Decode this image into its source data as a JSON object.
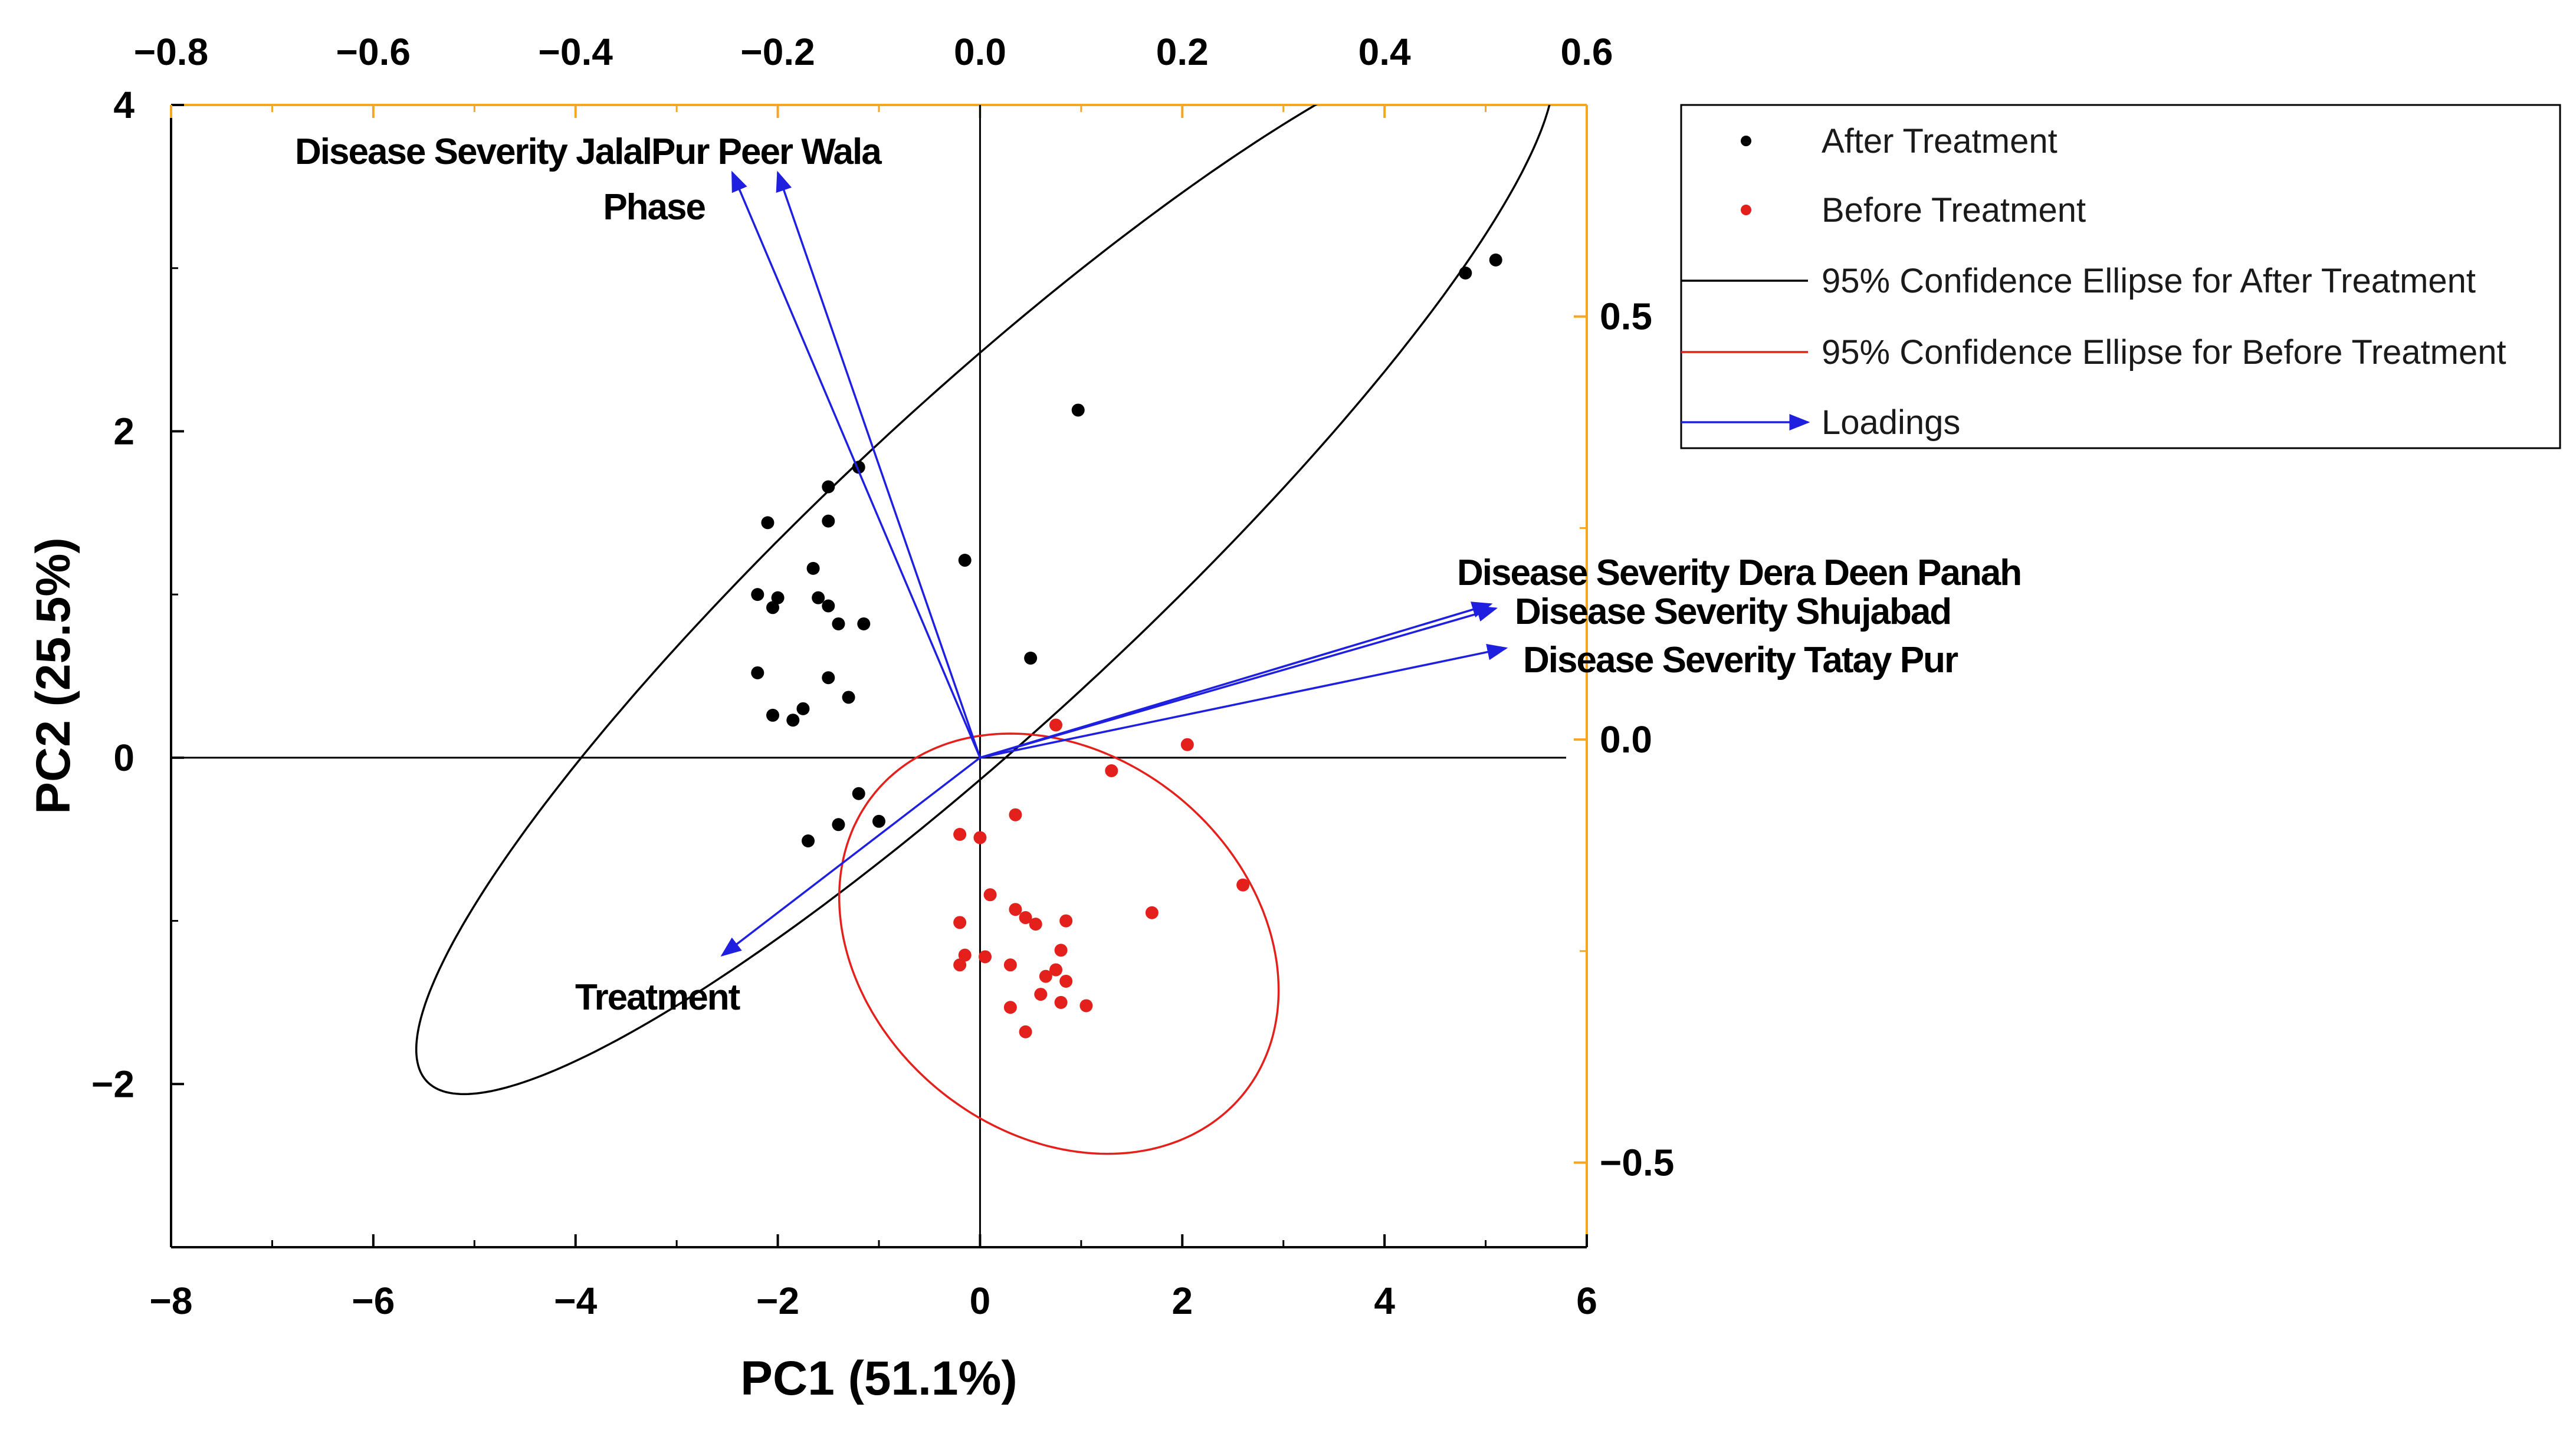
{
  "chart_data": {
    "type": "scatter",
    "subtype": "pca-biplot",
    "xlabel": "PC1 (51.1%)",
    "ylabel": "PC2 (25.5%)",
    "xlim": [
      -8,
      6
    ],
    "ylim": [
      -3,
      4
    ],
    "x_ticks": [
      "−8",
      "−6",
      "−4",
      "−2",
      "0",
      "2",
      "4",
      "6"
    ],
    "x_tick_values": [
      -8,
      -6,
      -4,
      -2,
      0,
      2,
      4,
      6
    ],
    "y_ticks": [
      "−2",
      "0",
      "2",
      "4"
    ],
    "y_tick_values": [
      -2,
      0,
      2,
      4
    ],
    "top_axis": {
      "lim": [
        -0.8,
        0.6
      ],
      "ticks": [
        "−0.8",
        "−0.6",
        "−0.4",
        "−0.2",
        "0.0",
        "0.2",
        "0.4",
        "0.6"
      ],
      "tick_values": [
        -0.8,
        -0.6,
        -0.4,
        -0.2,
        0.0,
        0.2,
        0.4,
        0.6
      ]
    },
    "right_axis": {
      "lim": [
        -0.6,
        0.75
      ],
      "ticks": [
        "0.5",
        "0.0",
        "−0.5"
      ],
      "tick_values": [
        0.5,
        0.0,
        -0.5
      ],
      "color": "#f5a623"
    },
    "series": [
      {
        "name": "After Treatment",
        "color": "#000000",
        "points": [
          [
            4.8,
            2.97
          ],
          [
            5.1,
            3.05
          ],
          [
            0.97,
            2.13
          ],
          [
            -1.2,
            1.78
          ],
          [
            -1.5,
            1.66
          ],
          [
            -2.1,
            1.44
          ],
          [
            -1.5,
            1.45
          ],
          [
            -1.65,
            1.16
          ],
          [
            -0.15,
            1.21
          ],
          [
            -2.2,
            1.0
          ],
          [
            -2.0,
            0.98
          ],
          [
            -2.05,
            0.92
          ],
          [
            -1.6,
            0.98
          ],
          [
            -1.5,
            0.93
          ],
          [
            -1.4,
            0.82
          ],
          [
            -1.15,
            0.82
          ],
          [
            0.5,
            0.61
          ],
          [
            -2.2,
            0.52
          ],
          [
            -1.5,
            0.49
          ],
          [
            -1.3,
            0.37
          ],
          [
            -1.75,
            0.3
          ],
          [
            -2.05,
            0.26
          ],
          [
            -1.85,
            0.23
          ],
          [
            -1.2,
            -0.22
          ],
          [
            -1.4,
            -0.41
          ],
          [
            -1.0,
            -0.39
          ],
          [
            -1.7,
            -0.51
          ]
        ]
      },
      {
        "name": "Before Treatment",
        "color": "#e3201b",
        "points": [
          [
            0.75,
            0.2
          ],
          [
            1.3,
            -0.08
          ],
          [
            2.05,
            0.08
          ],
          [
            -0.2,
            -0.47
          ],
          [
            0.35,
            -0.35
          ],
          [
            0.0,
            -0.49
          ],
          [
            2.6,
            -0.78
          ],
          [
            0.1,
            -0.84
          ],
          [
            0.35,
            -0.93
          ],
          [
            0.45,
            -0.98
          ],
          [
            0.55,
            -1.02
          ],
          [
            0.85,
            -1.0
          ],
          [
            1.7,
            -0.95
          ],
          [
            -0.2,
            -1.01
          ],
          [
            0.8,
            -1.18
          ],
          [
            -0.15,
            -1.21
          ],
          [
            0.05,
            -1.22
          ],
          [
            0.3,
            -1.27
          ],
          [
            0.75,
            -1.3
          ],
          [
            0.65,
            -1.34
          ],
          [
            0.85,
            -1.37
          ],
          [
            -0.2,
            -1.27
          ],
          [
            0.6,
            -1.45
          ],
          [
            0.8,
            -1.5
          ],
          [
            1.05,
            -1.52
          ],
          [
            0.3,
            -1.53
          ],
          [
            0.45,
            -1.68
          ]
        ]
      }
    ],
    "ellipses": [
      {
        "name": "95% Confidence Ellipse for After Treatment",
        "color": "#000000",
        "center": [
          0.05,
          1.2
        ],
        "semi_axes": [
          6.4,
          1.15
        ],
        "angle_deg": 29
      },
      {
        "name": "95% Confidence Ellipse for Before Treatment",
        "color": "#e3201b",
        "center": [
          0.78,
          -1.14
        ],
        "semi_axes": [
          2.2,
          1.24
        ],
        "angle_deg": -11
      }
    ],
    "loadings": {
      "color": "#1f1fe0",
      "vectors": [
        {
          "label": "Disease Severity JalalPur Peer Wala",
          "x": -0.2,
          "y": 0.67
        },
        {
          "label": "Phase",
          "x": -0.245,
          "y": 0.67
        },
        {
          "label": "Disease Severity Dera Deen Panah",
          "x": 0.505,
          "y": 0.16
        },
        {
          "label": "Disease Severity Shujabad",
          "x": 0.51,
          "y": 0.155
        },
        {
          "label": "Disease Severity Tatay Pur",
          "x": 0.52,
          "y": 0.108
        },
        {
          "label": "Treatment",
          "x": -0.255,
          "y": -0.255
        }
      ]
    },
    "legend": {
      "position": "top-right-outside",
      "entries": [
        {
          "label": "After Treatment",
          "kind": "marker",
          "color": "#000000"
        },
        {
          "label": "Before Treatment",
          "kind": "marker",
          "color": "#e3201b"
        },
        {
          "label": "95% Confidence Ellipse for After Treatment",
          "kind": "line",
          "color": "#000000"
        },
        {
          "label": "95% Confidence Ellipse for Before Treatment",
          "kind": "line",
          "color": "#e3201b"
        },
        {
          "label": "Loadings",
          "kind": "arrow",
          "color": "#1f1fe0"
        }
      ]
    }
  }
}
